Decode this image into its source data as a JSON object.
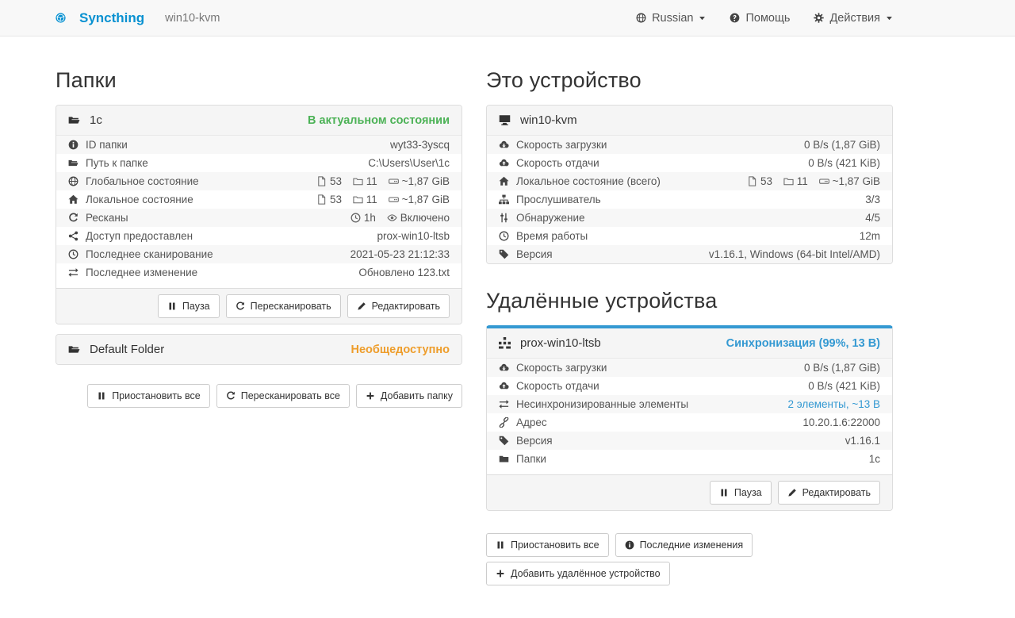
{
  "navbar": {
    "brand": "Syncthing",
    "device": "win10-kvm",
    "language": "Russian",
    "help": "Помощь",
    "actions": "Действия"
  },
  "colors": {
    "brand_blue": "#0891d1",
    "status_green": "#4cb256",
    "status_orange": "#ee9d2b",
    "status_blue": "#3499d2"
  },
  "icons": {
    "syncthing-logo-icon": "logo",
    "language-icon": "globe",
    "help-icon": "question",
    "actions-icon": "gear",
    "caret-down-icon": "caret",
    "folder-icon": "folder-open",
    "info-circle-icon": "info",
    "globe-icon": "globe",
    "home-icon": "home",
    "refresh-icon": "refresh",
    "share-icon": "share",
    "clock-icon": "clock",
    "exchange-icon": "exchange",
    "file-icon": "file",
    "directory-icon": "folder-line",
    "hdd-icon": "hdd",
    "eye-icon": "eye",
    "pause-icon": "pause",
    "pencil-icon": "pencil",
    "plus-icon": "plus",
    "cloud-download-icon": "cloud-down",
    "cloud-upload-icon": "cloud-up",
    "sitemap-icon": "sitemap",
    "sliders-icon": "sliders",
    "tag-icon": "tag",
    "link-icon": "link",
    "desktop-icon": "desktop",
    "identicon-icon": "identicon"
  },
  "folders": {
    "title": "Папки",
    "folder1": {
      "name": "1c",
      "status": "В актуальном состоянии",
      "rows": [
        {
          "label": "ID папки",
          "value": "wyt33-3yscq"
        },
        {
          "label": "Путь к папке",
          "value": "C:\\Users\\User\\1c"
        },
        {
          "label": "Глобальное состояние",
          "files": "53",
          "dirs": "11",
          "size": "~1,87 GiB"
        },
        {
          "label": "Локальное состояние",
          "files": "53",
          "dirs": "11",
          "size": "~1,87 GiB"
        },
        {
          "label": "Ресканы",
          "interval": "1h",
          "watch": "Включено"
        },
        {
          "label": "Доступ предоставлен",
          "value": "prox-win10-ltsb"
        },
        {
          "label": "Последнее сканирование",
          "value": "2021-05-23 21:12:33"
        },
        {
          "label": "Последнее изменение",
          "value": "Обновлено 123.txt"
        }
      ],
      "buttons": {
        "pause": "Пауза",
        "rescan": "Пересканировать",
        "edit": "Редактировать"
      }
    },
    "folder2": {
      "name": "Default Folder",
      "status": "Необщедоступно"
    },
    "actions": {
      "pause_all": "Приостановить все",
      "rescan_all": "Пересканировать все",
      "add": "Добавить папку"
    }
  },
  "this_device": {
    "title": "Это устройство",
    "name": "win10-kvm",
    "rows": [
      {
        "label": "Скорость загрузки",
        "value": "0 B/s (1,87 GiB)"
      },
      {
        "label": "Скорость отдачи",
        "value": "0 B/s (421 KiB)"
      },
      {
        "label": "Локальное состояние (всего)",
        "files": "53",
        "dirs": "11",
        "size": "~1,87 GiB"
      },
      {
        "label": "Прослушиватель",
        "value": "3/3"
      },
      {
        "label": "Обнаружение",
        "value": "4/5"
      },
      {
        "label": "Время работы",
        "value": "12m"
      },
      {
        "label": "Версия",
        "value": "v1.16.1, Windows (64-bit Intel/AMD)"
      }
    ]
  },
  "remote_devices": {
    "title": "Удалённые устройства",
    "device": {
      "name": "prox-win10-ltsb",
      "status": "Синхронизация",
      "status_detail": "(99%, 13 B)",
      "rows": [
        {
          "label": "Скорость загрузки",
          "value": "0 B/s (1,87 GiB)"
        },
        {
          "label": "Скорость отдачи",
          "value": "0 B/s (421 KiB)"
        },
        {
          "label": "Несинхронизированные элементы",
          "value": "2 элементы, ~13 B"
        },
        {
          "label": "Адрес",
          "value": "10.20.1.6:22000"
        },
        {
          "label": "Версия",
          "value": "v1.16.1"
        },
        {
          "label": "Папки",
          "value": "1c"
        }
      ],
      "buttons": {
        "pause": "Пауза",
        "edit": "Редактировать"
      }
    },
    "actions": {
      "pause_all": "Приостановить все",
      "recent": "Последние изменения",
      "add": "Добавить удалённое устройство"
    }
  }
}
